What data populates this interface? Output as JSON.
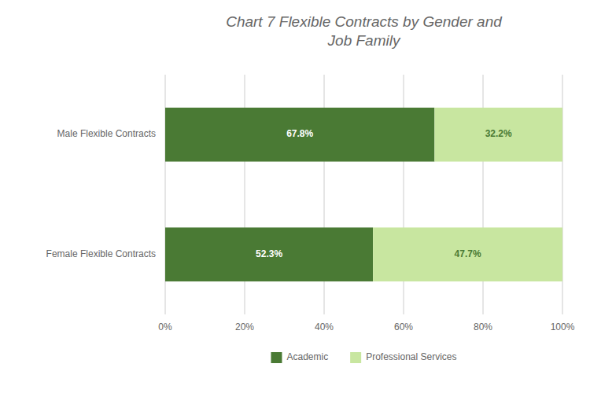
{
  "chart_data": {
    "type": "bar",
    "orientation": "horizontal",
    "stacked": true,
    "title": "Chart 7 Flexible Contracts by Gender and\nJob Family",
    "categories": [
      "Male Flexible Contracts",
      "Female Flexible Contracts"
    ],
    "series": [
      {
        "name": "Academic",
        "color": "#4a7a34",
        "values": [
          67.8,
          52.3
        ],
        "value_labels": [
          "67.8%",
          "52.3%"
        ]
      },
      {
        "name": "Professional Services",
        "color": "#c8e6a0",
        "values": [
          32.2,
          47.7
        ],
        "value_labels": [
          "32.2%",
          "47.7%"
        ]
      }
    ],
    "xlim": [
      0,
      100
    ],
    "xticks": [
      {
        "value": 0,
        "label": "0%"
      },
      {
        "value": 20,
        "label": "20%"
      },
      {
        "value": 40,
        "label": "40%"
      },
      {
        "value": 60,
        "label": "60%"
      },
      {
        "value": 80,
        "label": "80%"
      },
      {
        "value": 100,
        "label": "100%"
      }
    ],
    "grid": true,
    "data_labels": true,
    "legend": "bottom"
  }
}
